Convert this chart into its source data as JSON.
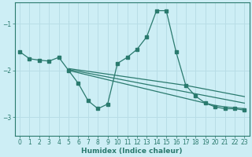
{
  "background_color": "#cdeef5",
  "grid_color": "#b8dde6",
  "line_color": "#2a7a6e",
  "xlabel": "Humidex (Indice chaleur)",
  "xlim": [
    -0.5,
    23.5
  ],
  "ylim": [
    -3.4,
    -0.55
  ],
  "yticks": [
    -3,
    -2,
    -1
  ],
  "xticks": [
    0,
    1,
    2,
    3,
    4,
    5,
    6,
    7,
    8,
    9,
    10,
    11,
    12,
    13,
    14,
    15,
    16,
    17,
    18,
    19,
    20,
    21,
    22,
    23
  ],
  "wavy": {
    "x": [
      0,
      1,
      2,
      3,
      4,
      5,
      6,
      7,
      8,
      9,
      10,
      11,
      12,
      13,
      14,
      15,
      16,
      17,
      18,
      19,
      20,
      21,
      22,
      23
    ],
    "y": [
      -1.6,
      -1.75,
      -1.78,
      -1.8,
      -1.72,
      -2.0,
      -2.28,
      -2.65,
      -2.82,
      -2.72,
      -1.85,
      -1.72,
      -1.55,
      -1.28,
      -0.72,
      -0.72,
      -1.6,
      -2.32,
      -2.55,
      -2.7,
      -2.78,
      -2.82,
      -2.82,
      -2.85
    ]
  },
  "straight_lines": [
    {
      "x": [
        5,
        6,
        7,
        8,
        9,
        10,
        11,
        12,
        13,
        14,
        15,
        16,
        17,
        18,
        19,
        20,
        21,
        22,
        23
      ],
      "y": [
        -1.96,
        -1.99,
        -2.02,
        -2.05,
        -2.08,
        -2.11,
        -2.14,
        -2.17,
        -2.2,
        -2.23,
        -2.26,
        -2.29,
        -2.32,
        -2.36,
        -2.4,
        -2.44,
        -2.48,
        -2.52,
        -2.56
      ]
    },
    {
      "x": [
        5,
        6,
        7,
        8,
        9,
        10,
        11,
        12,
        13,
        14,
        15,
        16,
        17,
        18,
        19,
        20,
        21,
        22,
        23
      ],
      "y": [
        -1.98,
        -2.02,
        -2.06,
        -2.1,
        -2.14,
        -2.18,
        -2.22,
        -2.26,
        -2.3,
        -2.34,
        -2.38,
        -2.42,
        -2.46,
        -2.5,
        -2.54,
        -2.58,
        -2.62,
        -2.66,
        -2.7
      ]
    },
    {
      "x": [
        5,
        6,
        7,
        8,
        9,
        10,
        11,
        12,
        13,
        14,
        15,
        16,
        17,
        18,
        19,
        20,
        21,
        22,
        23
      ],
      "y": [
        -2.0,
        -2.05,
        -2.1,
        -2.15,
        -2.2,
        -2.25,
        -2.3,
        -2.35,
        -2.4,
        -2.45,
        -2.5,
        -2.55,
        -2.6,
        -2.65,
        -2.7,
        -2.75,
        -2.78,
        -2.8,
        -2.82
      ]
    }
  ]
}
